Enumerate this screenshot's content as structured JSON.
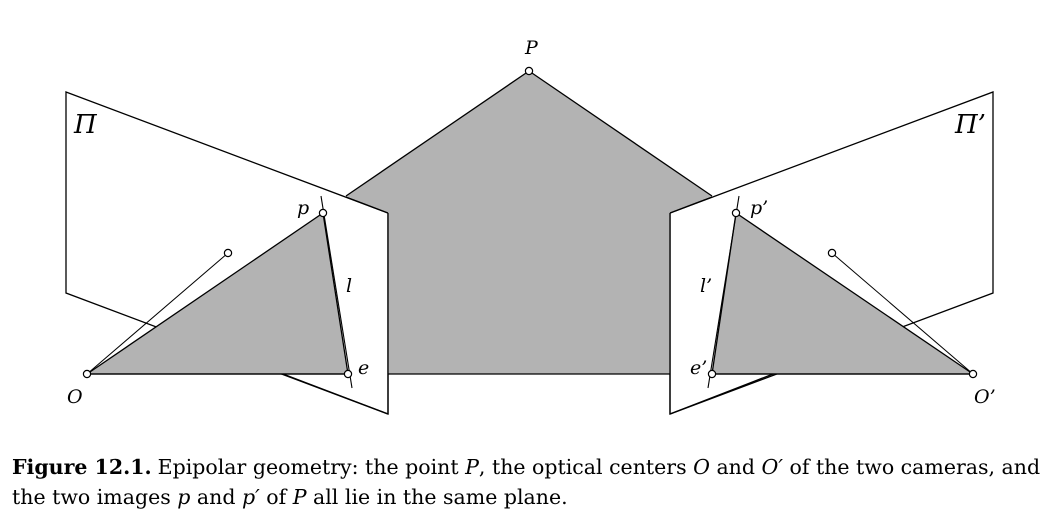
{
  "labels": {
    "P": "P",
    "O": "O",
    "O_prime": "O’",
    "p": "p",
    "p_prime": "p’",
    "e": "e",
    "e_prime": "e’",
    "l": "l",
    "l_prime": "l’",
    "Pi": "Π",
    "Pi_prime": "Π’"
  },
  "caption": {
    "label": "Figure 12.1.",
    "t1": "Epipolar geometry: the point ",
    "v1": "P",
    "t2": ", the optical centers ",
    "v2": "O",
    "t3": " and ",
    "v3": "O′",
    "t4": " of the two cameras, and the two images ",
    "v4": "p",
    "t5": " and ",
    "v5": "p′",
    "t6": " of ",
    "v6": "P",
    "t7": " all lie in the same plane."
  },
  "colors": {
    "fill": "#b3b3b3",
    "stroke": "#000000",
    "plane": "#ffffff"
  }
}
